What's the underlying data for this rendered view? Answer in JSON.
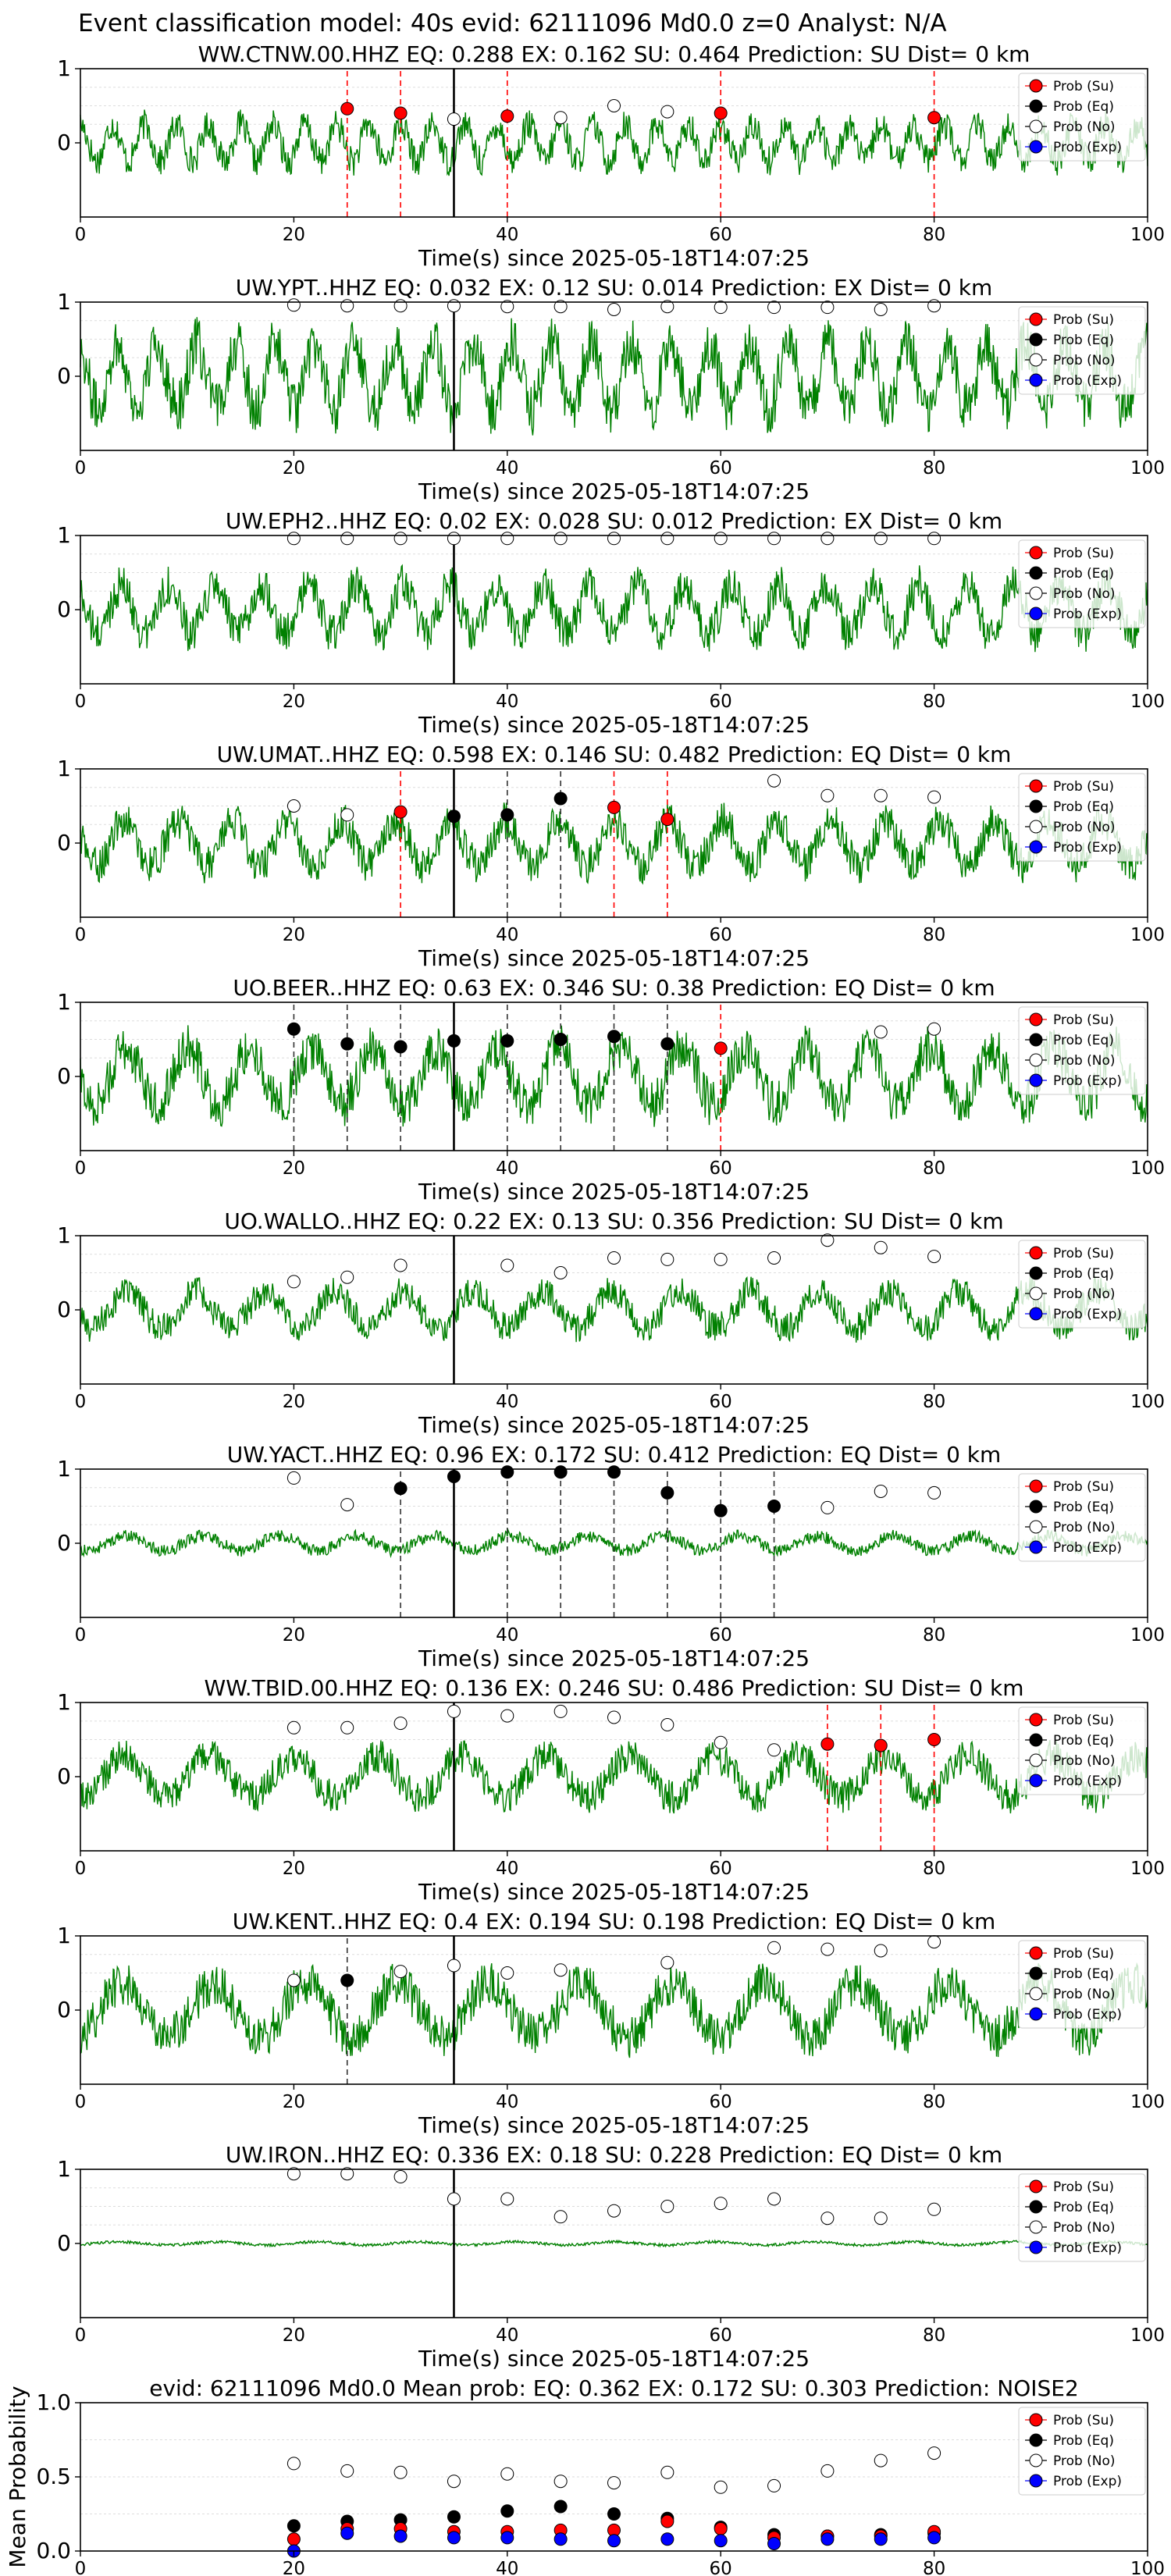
{
  "header": "Event classification model: 40s evid: 62111096 Md0.0 z=0 Analyst: N/A",
  "legend_labels": [
    "Prob (Su)",
    "Prob (Eq)",
    "Prob (No)",
    "Prob (Exp)"
  ],
  "colors": {
    "waveform": "#008000",
    "su": "#ff0000",
    "eq": "#000000",
    "no": "#ffffff",
    "exp": "#0000ff"
  },
  "chart_data": [
    {
      "type": "line",
      "station": "WW.CTNW.00.HHZ",
      "title": "WW.CTNW.00.HHZ   EQ: 0.288  EX: 0.162  SU: 0.464   Prediction: SU    Dist= 0 km",
      "xlabel": "Time(s) since 2025-05-18T14:07:25",
      "xlim": [
        0,
        100
      ],
      "ylim": [
        -1,
        1
      ],
      "xticks": [
        "0",
        "20",
        "40",
        "60",
        "80",
        "100"
      ],
      "yticks": [
        "1",
        "0"
      ],
      "marker_line": 35,
      "noise_amp": 0.45,
      "points": [
        {
          "x": 25,
          "y": 0.46,
          "cls": "su"
        },
        {
          "x": 30,
          "y": 0.4,
          "cls": "su"
        },
        {
          "x": 35,
          "y": 0.32,
          "cls": "no"
        },
        {
          "x": 40,
          "y": 0.36,
          "cls": "su"
        },
        {
          "x": 45,
          "y": 0.34,
          "cls": "no"
        },
        {
          "x": 50,
          "y": 0.5,
          "cls": "no"
        },
        {
          "x": 55,
          "y": 0.42,
          "cls": "no"
        },
        {
          "x": 60,
          "y": 0.4,
          "cls": "su"
        },
        {
          "x": 80,
          "y": 0.34,
          "cls": "su"
        }
      ],
      "vlines": [
        {
          "x": 25,
          "cls": "su"
        },
        {
          "x": 30,
          "cls": "su"
        },
        {
          "x": 40,
          "cls": "su"
        },
        {
          "x": 60,
          "cls": "su"
        },
        {
          "x": 80,
          "cls": "su"
        }
      ]
    },
    {
      "type": "line",
      "station": "UW.YPT..HHZ",
      "title": "UW.YPT..HHZ   EQ: 0.032  EX: 0.12  SU: 0.014   Prediction: EX    Dist= 0 km",
      "xlabel": "Time(s) since 2025-05-18T14:07:25",
      "xlim": [
        0,
        100
      ],
      "ylim": [
        -1,
        1
      ],
      "xticks": [
        "0",
        "20",
        "40",
        "60",
        "80",
        "100"
      ],
      "yticks": [
        "1",
        "0"
      ],
      "marker_line": 35,
      "noise_amp": 0.8,
      "points": [
        {
          "x": 20,
          "y": 0.96,
          "cls": "no"
        },
        {
          "x": 25,
          "y": 0.95,
          "cls": "no"
        },
        {
          "x": 30,
          "y": 0.95,
          "cls": "no"
        },
        {
          "x": 35,
          "y": 0.95,
          "cls": "no"
        },
        {
          "x": 40,
          "y": 0.94,
          "cls": "no"
        },
        {
          "x": 45,
          "y": 0.94,
          "cls": "no"
        },
        {
          "x": 50,
          "y": 0.9,
          "cls": "no"
        },
        {
          "x": 55,
          "y": 0.94,
          "cls": "no"
        },
        {
          "x": 60,
          "y": 0.93,
          "cls": "no"
        },
        {
          "x": 65,
          "y": 0.93,
          "cls": "no"
        },
        {
          "x": 70,
          "y": 0.93,
          "cls": "no"
        },
        {
          "x": 75,
          "y": 0.9,
          "cls": "no"
        },
        {
          "x": 80,
          "y": 0.95,
          "cls": "no"
        }
      ],
      "vlines": []
    },
    {
      "type": "line",
      "station": "UW.EPH2..HHZ",
      "title": "UW.EPH2..HHZ   EQ: 0.02  EX: 0.028  SU: 0.012   Prediction: EX    Dist= 0 km",
      "xlabel": "Time(s) since 2025-05-18T14:07:25",
      "xlim": [
        0,
        100
      ],
      "ylim": [
        -1,
        1
      ],
      "xticks": [
        "0",
        "20",
        "40",
        "60",
        "80",
        "100"
      ],
      "yticks": [
        "1",
        "0"
      ],
      "marker_line": 35,
      "noise_amp": 0.6,
      "points": [
        {
          "x": 20,
          "y": 0.96,
          "cls": "no"
        },
        {
          "x": 25,
          "y": 0.96,
          "cls": "no"
        },
        {
          "x": 30,
          "y": 0.96,
          "cls": "no"
        },
        {
          "x": 35,
          "y": 0.96,
          "cls": "no"
        },
        {
          "x": 40,
          "y": 0.96,
          "cls": "no"
        },
        {
          "x": 45,
          "y": 0.96,
          "cls": "no"
        },
        {
          "x": 50,
          "y": 0.96,
          "cls": "no"
        },
        {
          "x": 55,
          "y": 0.96,
          "cls": "no"
        },
        {
          "x": 60,
          "y": 0.96,
          "cls": "no"
        },
        {
          "x": 65,
          "y": 0.96,
          "cls": "no"
        },
        {
          "x": 70,
          "y": 0.96,
          "cls": "no"
        },
        {
          "x": 75,
          "y": 0.96,
          "cls": "no"
        },
        {
          "x": 80,
          "y": 0.96,
          "cls": "no"
        }
      ],
      "vlines": []
    },
    {
      "type": "line",
      "station": "UW.UMAT..HHZ",
      "title": "UW.UMAT..HHZ   EQ: 0.598  EX: 0.146  SU: 0.482   Prediction: EQ    Dist= 0 km",
      "xlabel": "Time(s) since 2025-05-18T14:07:25",
      "xlim": [
        0,
        100
      ],
      "ylim": [
        -1,
        1
      ],
      "xticks": [
        "0",
        "20",
        "40",
        "60",
        "80",
        "100"
      ],
      "yticks": [
        "1",
        "0"
      ],
      "marker_line": 35,
      "noise_amp": 0.55,
      "points": [
        {
          "x": 20,
          "y": 0.5,
          "cls": "no"
        },
        {
          "x": 25,
          "y": 0.38,
          "cls": "no"
        },
        {
          "x": 30,
          "y": 0.42,
          "cls": "su"
        },
        {
          "x": 35,
          "y": 0.36,
          "cls": "eq"
        },
        {
          "x": 40,
          "y": 0.38,
          "cls": "eq"
        },
        {
          "x": 45,
          "y": 0.6,
          "cls": "eq"
        },
        {
          "x": 50,
          "y": 0.48,
          "cls": "su"
        },
        {
          "x": 55,
          "y": 0.32,
          "cls": "su"
        },
        {
          "x": 65,
          "y": 0.84,
          "cls": "no"
        },
        {
          "x": 70,
          "y": 0.64,
          "cls": "no"
        },
        {
          "x": 75,
          "y": 0.64,
          "cls": "no"
        },
        {
          "x": 80,
          "y": 0.62,
          "cls": "no"
        }
      ],
      "vlines": [
        {
          "x": 30,
          "cls": "su"
        },
        {
          "x": 40,
          "cls": "eq"
        },
        {
          "x": 45,
          "cls": "eq"
        },
        {
          "x": 50,
          "cls": "su"
        },
        {
          "x": 55,
          "cls": "su"
        }
      ]
    },
    {
      "type": "line",
      "station": "UO.BEER..HHZ",
      "title": "UO.BEER..HHZ   EQ: 0.63  EX: 0.346  SU: 0.38   Prediction: EQ    Dist= 0 km",
      "xlabel": "Time(s) since 2025-05-18T14:07:25",
      "xlim": [
        0,
        100
      ],
      "ylim": [
        -1,
        1
      ],
      "xticks": [
        "0",
        "20",
        "40",
        "60",
        "80",
        "100"
      ],
      "yticks": [
        "1",
        "0"
      ],
      "marker_line": 35,
      "noise_amp": 0.7,
      "points": [
        {
          "x": 20,
          "y": 0.64,
          "cls": "eq"
        },
        {
          "x": 25,
          "y": 0.44,
          "cls": "eq"
        },
        {
          "x": 30,
          "y": 0.4,
          "cls": "eq"
        },
        {
          "x": 35,
          "y": 0.48,
          "cls": "eq"
        },
        {
          "x": 40,
          "y": 0.48,
          "cls": "eq"
        },
        {
          "x": 45,
          "y": 0.5,
          "cls": "eq"
        },
        {
          "x": 50,
          "y": 0.54,
          "cls": "eq"
        },
        {
          "x": 55,
          "y": 0.44,
          "cls": "eq"
        },
        {
          "x": 60,
          "y": 0.38,
          "cls": "su"
        },
        {
          "x": 75,
          "y": 0.6,
          "cls": "no"
        },
        {
          "x": 80,
          "y": 0.64,
          "cls": "no"
        }
      ],
      "vlines": [
        {
          "x": 20,
          "cls": "eq"
        },
        {
          "x": 25,
          "cls": "eq"
        },
        {
          "x": 30,
          "cls": "eq"
        },
        {
          "x": 40,
          "cls": "eq"
        },
        {
          "x": 45,
          "cls": "eq"
        },
        {
          "x": 50,
          "cls": "eq"
        },
        {
          "x": 55,
          "cls": "eq"
        },
        {
          "x": 60,
          "cls": "su"
        }
      ]
    },
    {
      "type": "line",
      "station": "UO.WALLO..HHZ",
      "title": "UO.WALLO..HHZ   EQ: 0.22  EX: 0.13  SU: 0.356   Prediction: SU    Dist= 0 km",
      "xlabel": "Time(s) since 2025-05-18T14:07:25",
      "xlim": [
        0,
        100
      ],
      "ylim": [
        -1,
        1
      ],
      "xticks": [
        "0",
        "20",
        "40",
        "60",
        "80",
        "100"
      ],
      "yticks": [
        "1",
        "0"
      ],
      "marker_line": 35,
      "noise_amp": 0.45,
      "points": [
        {
          "x": 20,
          "y": 0.38,
          "cls": "no"
        },
        {
          "x": 25,
          "y": 0.44,
          "cls": "no"
        },
        {
          "x": 30,
          "y": 0.6,
          "cls": "no"
        },
        {
          "x": 40,
          "y": 0.6,
          "cls": "no"
        },
        {
          "x": 45,
          "y": 0.5,
          "cls": "no"
        },
        {
          "x": 50,
          "y": 0.7,
          "cls": "no"
        },
        {
          "x": 55,
          "y": 0.68,
          "cls": "no"
        },
        {
          "x": 60,
          "y": 0.68,
          "cls": "no"
        },
        {
          "x": 65,
          "y": 0.7,
          "cls": "no"
        },
        {
          "x": 70,
          "y": 0.94,
          "cls": "no"
        },
        {
          "x": 75,
          "y": 0.84,
          "cls": "no"
        },
        {
          "x": 80,
          "y": 0.72,
          "cls": "no"
        }
      ],
      "vlines": []
    },
    {
      "type": "line",
      "station": "UW.YACT..HHZ",
      "title": "UW.YACT..HHZ   EQ: 0.96  EX: 0.172  SU: 0.412   Prediction: EQ    Dist= 0 km",
      "xlabel": "Time(s) since 2025-05-18T14:07:25",
      "xlim": [
        0,
        100
      ],
      "ylim": [
        -1,
        1
      ],
      "xticks": [
        "0",
        "20",
        "40",
        "60",
        "80",
        "100"
      ],
      "yticks": [
        "1",
        "0"
      ],
      "marker_line": 35,
      "noise_amp": 0.18,
      "points": [
        {
          "x": 20,
          "y": 0.88,
          "cls": "no"
        },
        {
          "x": 25,
          "y": 0.52,
          "cls": "no"
        },
        {
          "x": 30,
          "y": 0.74,
          "cls": "eq"
        },
        {
          "x": 35,
          "y": 0.9,
          "cls": "eq"
        },
        {
          "x": 40,
          "y": 0.96,
          "cls": "eq"
        },
        {
          "x": 45,
          "y": 0.96,
          "cls": "eq"
        },
        {
          "x": 50,
          "y": 0.96,
          "cls": "eq"
        },
        {
          "x": 55,
          "y": 0.68,
          "cls": "eq"
        },
        {
          "x": 60,
          "y": 0.44,
          "cls": "eq"
        },
        {
          "x": 65,
          "y": 0.5,
          "cls": "eq"
        },
        {
          "x": 70,
          "y": 0.48,
          "cls": "no"
        },
        {
          "x": 75,
          "y": 0.7,
          "cls": "no"
        },
        {
          "x": 80,
          "y": 0.68,
          "cls": "no"
        }
      ],
      "vlines": [
        {
          "x": 30,
          "cls": "eq"
        },
        {
          "x": 40,
          "cls": "eq"
        },
        {
          "x": 45,
          "cls": "eq"
        },
        {
          "x": 50,
          "cls": "eq"
        },
        {
          "x": 55,
          "cls": "eq"
        },
        {
          "x": 60,
          "cls": "eq"
        },
        {
          "x": 65,
          "cls": "eq"
        }
      ]
    },
    {
      "type": "line",
      "station": "WW.TBID.00.HHZ",
      "title": "WW.TBID.00.HHZ   EQ: 0.136  EX: 0.246  SU: 0.486   Prediction: SU    Dist= 0 km",
      "xlabel": "Time(s) since 2025-05-18T14:07:25",
      "xlim": [
        0,
        100
      ],
      "ylim": [
        -1,
        1
      ],
      "xticks": [
        "0",
        "20",
        "40",
        "60",
        "80",
        "100"
      ],
      "yticks": [
        "1",
        "0"
      ],
      "marker_line": 35,
      "noise_amp": 0.5,
      "points": [
        {
          "x": 20,
          "y": 0.66,
          "cls": "no"
        },
        {
          "x": 25,
          "y": 0.66,
          "cls": "no"
        },
        {
          "x": 30,
          "y": 0.72,
          "cls": "no"
        },
        {
          "x": 35,
          "y": 0.88,
          "cls": "no"
        },
        {
          "x": 40,
          "y": 0.82,
          "cls": "no"
        },
        {
          "x": 45,
          "y": 0.88,
          "cls": "no"
        },
        {
          "x": 50,
          "y": 0.8,
          "cls": "no"
        },
        {
          "x": 55,
          "y": 0.7,
          "cls": "no"
        },
        {
          "x": 60,
          "y": 0.46,
          "cls": "no"
        },
        {
          "x": 65,
          "y": 0.36,
          "cls": "no"
        },
        {
          "x": 70,
          "y": 0.44,
          "cls": "su"
        },
        {
          "x": 75,
          "y": 0.42,
          "cls": "su"
        },
        {
          "x": 80,
          "y": 0.5,
          "cls": "su"
        }
      ],
      "vlines": [
        {
          "x": 70,
          "cls": "su"
        },
        {
          "x": 75,
          "cls": "su"
        },
        {
          "x": 80,
          "cls": "su"
        }
      ]
    },
    {
      "type": "line",
      "station": "UW.KENT..HHZ",
      "title": "UW.KENT..HHZ   EQ: 0.4  EX: 0.194  SU: 0.198   Prediction: EQ    Dist= 0 km",
      "xlabel": "Time(s) since 2025-05-18T14:07:25",
      "xlim": [
        0,
        100
      ],
      "ylim": [
        -1,
        1
      ],
      "xticks": [
        "0",
        "20",
        "40",
        "60",
        "80",
        "100"
      ],
      "yticks": [
        "1",
        "0"
      ],
      "marker_line": 35,
      "noise_amp": 0.65,
      "points": [
        {
          "x": 20,
          "y": 0.4,
          "cls": "no"
        },
        {
          "x": 25,
          "y": 0.4,
          "cls": "eq"
        },
        {
          "x": 30,
          "y": 0.52,
          "cls": "no"
        },
        {
          "x": 35,
          "y": 0.6,
          "cls": "no"
        },
        {
          "x": 40,
          "y": 0.5,
          "cls": "no"
        },
        {
          "x": 45,
          "y": 0.54,
          "cls": "no"
        },
        {
          "x": 55,
          "y": 0.64,
          "cls": "no"
        },
        {
          "x": 65,
          "y": 0.84,
          "cls": "no"
        },
        {
          "x": 70,
          "y": 0.82,
          "cls": "no"
        },
        {
          "x": 75,
          "y": 0.8,
          "cls": "no"
        },
        {
          "x": 80,
          "y": 0.92,
          "cls": "no"
        }
      ],
      "vlines": [
        {
          "x": 25,
          "cls": "eq"
        }
      ]
    },
    {
      "type": "line",
      "station": "UW.IRON..HHZ",
      "title": "UW.IRON..HHZ   EQ: 0.336  EX: 0.18  SU: 0.228   Prediction: EQ    Dist= 0 km",
      "xlabel": "Time(s) since 2025-05-18T14:07:25",
      "xlim": [
        0,
        100
      ],
      "ylim": [
        -1,
        1
      ],
      "xticks": [
        "0",
        "20",
        "40",
        "60",
        "80",
        "100"
      ],
      "yticks": [
        "1",
        "0"
      ],
      "marker_line": 35,
      "noise_amp": 0.04,
      "points": [
        {
          "x": 20,
          "y": 0.94,
          "cls": "no"
        },
        {
          "x": 25,
          "y": 0.94,
          "cls": "no"
        },
        {
          "x": 30,
          "y": 0.9,
          "cls": "no"
        },
        {
          "x": 35,
          "y": 0.6,
          "cls": "no"
        },
        {
          "x": 40,
          "y": 0.6,
          "cls": "no"
        },
        {
          "x": 45,
          "y": 0.36,
          "cls": "no"
        },
        {
          "x": 50,
          "y": 0.44,
          "cls": "no"
        },
        {
          "x": 55,
          "y": 0.5,
          "cls": "no"
        },
        {
          "x": 60,
          "y": 0.54,
          "cls": "no"
        },
        {
          "x": 65,
          "y": 0.6,
          "cls": "no"
        },
        {
          "x": 70,
          "y": 0.34,
          "cls": "no"
        },
        {
          "x": 75,
          "y": 0.34,
          "cls": "no"
        },
        {
          "x": 80,
          "y": 0.46,
          "cls": "no"
        }
      ],
      "vlines": []
    },
    {
      "type": "scatter",
      "station": "mean",
      "title": "evid: 62111096   Md0.0    Mean prob:    EQ: 0.362   EX: 0.172   SU: 0.303    Prediction: NOISE2",
      "xlabel": "",
      "ylabel": "Mean Probability",
      "xlim": [
        0,
        100
      ],
      "ylim": [
        0,
        1
      ],
      "xticks": [
        "0",
        "20",
        "40",
        "60",
        "80",
        "100"
      ],
      "yticks": [
        "1.0",
        "0.5",
        "0.0"
      ],
      "x": [
        20,
        25,
        30,
        35,
        40,
        45,
        50,
        55,
        60,
        65,
        70,
        75,
        80
      ],
      "series": [
        {
          "cls": "no",
          "values": [
            0.59,
            0.54,
            0.53,
            0.47,
            0.52,
            0.47,
            0.46,
            0.53,
            0.43,
            0.44,
            0.54,
            0.61,
            0.66
          ]
        },
        {
          "cls": "eq",
          "values": [
            0.17,
            0.2,
            0.21,
            0.23,
            0.27,
            0.3,
            0.25,
            0.22,
            0.16,
            0.11,
            0.1,
            0.11,
            0.12
          ]
        },
        {
          "cls": "su",
          "values": [
            0.08,
            0.15,
            0.15,
            0.13,
            0.13,
            0.14,
            0.14,
            0.2,
            0.15,
            0.09,
            0.1,
            0.1,
            0.13
          ]
        },
        {
          "cls": "exp",
          "values": [
            0.0,
            0.12,
            0.1,
            0.09,
            0.09,
            0.08,
            0.07,
            0.08,
            0.07,
            0.05,
            0.08,
            0.08,
            0.09
          ]
        }
      ]
    }
  ]
}
